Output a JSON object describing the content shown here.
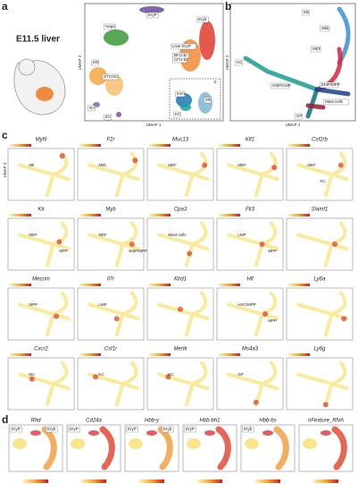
{
  "panel_a": {
    "letter": "a",
    "stage": "E11.5 liver",
    "x_axis": "UMAP 1",
    "y_axis": "UMAP 2",
    "clusters": [
      "EryP",
      "Hepa",
      "Eryb",
      "Liver EryP",
      "BFU-E/",
      "CFU-E",
      "MC",
      "STC/SC",
      "NA",
      "EC",
      "Imm",
      "KC",
      "Mk",
      "b"
    ]
  },
  "panel_b": {
    "letter": "b",
    "x_axis": "UMAP 1",
    "y_axis": "UMAP 2",
    "clusters": [
      "Mk",
      "Mkb",
      "MEF",
      "KC",
      "GMP/LMP",
      "EMP/MPP",
      "Mast cells",
      "GP"
    ]
  },
  "panel_c": {
    "letter": "c",
    "y_axis": "UMAP 2",
    "plots": [
      {
        "gene": "Myl9",
        "labels": [
          "Mk"
        ]
      },
      {
        "gene": "F2r",
        "labels": [
          "Mkb"
        ]
      },
      {
        "gene": "Muc13",
        "labels": [
          "MEF"
        ]
      },
      {
        "gene": "Klf1",
        "labels": [
          "MEF"
        ]
      },
      {
        "gene": "Csf2rb",
        "labels": [
          "MEF",
          "KC"
        ]
      },
      {
        "gene": "Kit",
        "labels": [
          "MEF",
          "MPP"
        ]
      },
      {
        "gene": "Myb",
        "labels": [
          "MEF",
          "EMP/MPP"
        ]
      },
      {
        "gene": "Cpa3",
        "labels": [
          "Mast cells"
        ]
      },
      {
        "gene": "Flt3",
        "labels": [
          "LMP",
          "MPP"
        ]
      },
      {
        "gene": "Slamf1"
      },
      {
        "gene": "Mecom",
        "labels": [
          "MPP"
        ]
      },
      {
        "gene": "Il7r",
        "labels": [
          "LMP"
        ]
      },
      {
        "gene": "Klrd1"
      },
      {
        "gene": "Hlf",
        "labels": [
          "HSC/MPP",
          "MPP"
        ]
      },
      {
        "gene": "Ly6a"
      },
      {
        "gene": "Cxcr2",
        "labels": [
          "Mo"
        ]
      },
      {
        "gene": "Csf1r",
        "labels": [
          "KC"
        ]
      },
      {
        "gene": "Mertk",
        "labels": [
          "KC"
        ]
      },
      {
        "gene": "Ms4a3",
        "labels": [
          "GP"
        ]
      },
      {
        "gene": "Ly6g"
      }
    ]
  },
  "panel_d": {
    "letter": "d",
    "plots": [
      {
        "gene": "Rhd",
        "labels": [
          "EryP",
          "Eryb"
        ]
      },
      {
        "gene": "Cd24a",
        "labels": [
          "EryP"
        ]
      },
      {
        "gene": "Hbb-y",
        "labels": [
          "EryP",
          "Eryb"
        ]
      },
      {
        "gene": "Hbb-bh1",
        "labels": [
          "EryP"
        ]
      },
      {
        "gene": "Hbb-bs",
        "labels": [
          "Eryb"
        ]
      },
      {
        "gene": "nFeature_RNA"
      }
    ]
  }
}
